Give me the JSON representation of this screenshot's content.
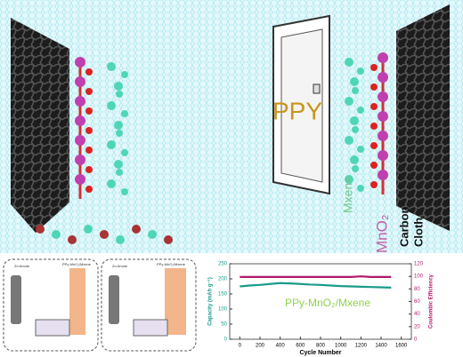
{
  "illustration": {
    "door_label": "PPY",
    "mxene_label": "Mxene",
    "mno2_label": "MnO₂",
    "cloth_label": [
      "Carbon",
      "Cloth"
    ],
    "panels": [
      {
        "anode": "Zn Anode",
        "cathode": "PPy-MnO₂/Mxene"
      },
      {
        "anode": "Zn Anode",
        "cathode": "PPy-MnO₂/Mxene"
      }
    ]
  },
  "chart_data": {
    "type": "line",
    "title": "PPy-MnO₂/Mxene",
    "xlabel": "Cycle Number",
    "ylabel": "Capacity (mAh g⁻¹)",
    "y2label": "Coulombic Efficiency",
    "x": [
      0,
      100,
      200,
      300,
      400,
      500,
      600,
      700,
      800,
      900,
      1000,
      1100,
      1200,
      1300,
      1400,
      1500
    ],
    "xlim": [
      -100,
      1700
    ],
    "xticks": [
      0,
      200,
      400,
      600,
      800,
      1000,
      1200,
      1400,
      1600
    ],
    "ylim": [
      0,
      250
    ],
    "yticks": [
      0,
      50,
      100,
      150,
      200,
      250
    ],
    "y2lim": [
      0,
      120
    ],
    "y2ticks": [
      0,
      20,
      40,
      60,
      80,
      100,
      120
    ],
    "series": [
      {
        "name": "Capacity",
        "color": "#1a9a8a",
        "values": [
          175,
          178,
          180,
          183,
          186,
          185,
          183,
          181,
          180,
          178,
          176,
          175,
          174,
          173,
          172,
          171
        ]
      },
      {
        "name": "Coulombic Efficiency",
        "color": "#b0186e",
        "axis": "y2",
        "values": [
          99,
          99,
          99,
          99,
          99,
          99,
          99,
          99,
          99,
          99,
          99,
          99,
          100,
          99,
          99,
          99
        ]
      }
    ]
  }
}
